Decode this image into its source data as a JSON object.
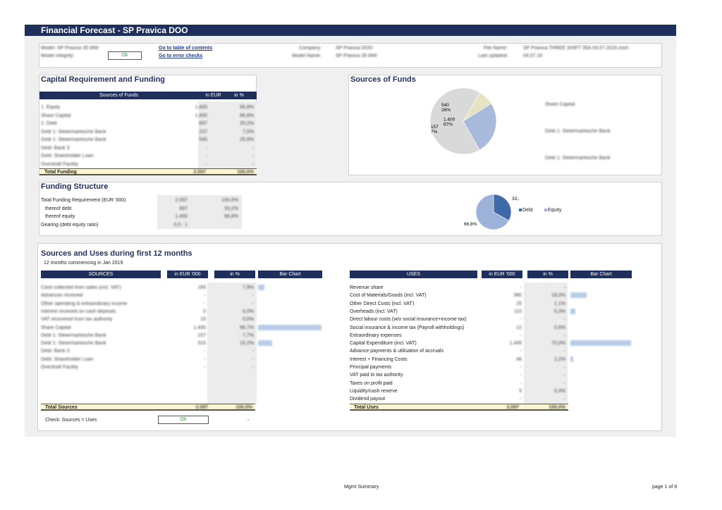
{
  "title": "Financial Forecast - SP Pravica DOO",
  "info": {
    "model_label": "Model: SP Pravica 35 MW",
    "integrity_label": "Model integrity:",
    "integrity_value": "Ok",
    "link_toc": "Go to table of contents",
    "link_errors": "Go to error checks",
    "company_label": "Company:",
    "company_value": "SP Pravica DOO",
    "model_name_label": "Model Name:",
    "model_name_value": "SP Pravica 35 MW",
    "filename_label": "File Name:",
    "filename_value": "SP Pravica THREE SHIFT 35A 04.07.2016.xlsm",
    "updated_label": "Last updated:",
    "updated_value": "04.07.16"
  },
  "capital": {
    "title": "Capital Requirement and Funding",
    "headers": [
      "Sources of Funds",
      "in EUR '000",
      "in %"
    ],
    "rows": [
      {
        "label": "1. Equity",
        "eur": "1.400",
        "pct": "66,8%"
      },
      {
        "label": "Share Capital",
        "eur": "1.400",
        "pct": "66,8%"
      },
      {
        "label": "2. Debt",
        "eur": "697",
        "pct": "33,2%"
      },
      {
        "label": "Debt 1: Steiermarkische Bank",
        "eur": "157",
        "pct": "7,5%"
      },
      {
        "label": "Debt 1: Steiermarkische Bank",
        "eur": "540",
        "pct": "25,8%"
      },
      {
        "label": "Debt: Bank 3",
        "eur": "-",
        "pct": "-"
      },
      {
        "label": "Debt: Shareholder Loan",
        "eur": "-",
        "pct": "-"
      },
      {
        "label": "Overdraft Facility",
        "eur": "-",
        "pct": "-"
      }
    ],
    "total_label": "Total Funding",
    "total_eur": "2.097",
    "total_pct": "100,0%"
  },
  "sources_of_funds": {
    "title": "Sources of Funds",
    "legend": [
      "Share Capital",
      "Debt 1: Steiermarkische Bank",
      "Debt 1: Steiermarkische Bank"
    ]
  },
  "funding_structure": {
    "title": "Funding Structure",
    "rows": [
      {
        "label": "Total Funding Requirement (EUR '000)",
        "a": "2.097",
        "b": "100,0%"
      },
      {
        "label": "thereof debt",
        "a": "697",
        "b": "33,2%"
      },
      {
        "label": "thereof equity",
        "a": "1.400",
        "b": "66,8%"
      },
      {
        "label": "Gearing (debt equity ratio)",
        "a": "0,5 : 1",
        "b": ""
      }
    ],
    "legend_debt": "Debt",
    "legend_equity": "Equity"
  },
  "chart_data": [
    {
      "type": "pie",
      "categories": [
        "Share Capital",
        "Debt 1: Steiermarkische Bank",
        "Debt 1: Steiermarkische Bank"
      ],
      "values": [
        1400,
        157,
        540
      ],
      "data_labels": [
        {
          "value": "1.400",
          "pct": "67%"
        },
        {
          "value": "157",
          "pct": "7%"
        },
        {
          "value": "540",
          "pct": "26%"
        }
      ],
      "colors": [
        "#d9d9d9",
        "#e6e2c2",
        "#a9bbdc"
      ]
    },
    {
      "type": "pie",
      "categories": [
        "Debt",
        "Equity"
      ],
      "values": [
        33.2,
        66.8
      ],
      "data_labels": [
        "33,2%",
        "66,8%"
      ],
      "colors": [
        "#3f6aa8",
        "#9cb2d8"
      ]
    }
  ],
  "sources_uses": {
    "title": "Sources and Uses during first 12 months",
    "subtitle": "12 months commencing in Jan 2019",
    "sources_headers": [
      "SOURCES",
      "in EUR '000",
      "in %",
      "Bar Chart"
    ],
    "uses_headers": [
      "USES",
      "in EUR '000",
      "in %",
      "Bar Chart"
    ],
    "sources": [
      {
        "label": "Cash collected from sales (incl. VAT)",
        "eur": "165",
        "pct": "7,9%",
        "bar": 0.08
      },
      {
        "label": "Advances received",
        "eur": "-",
        "pct": "-",
        "bar": 0
      },
      {
        "label": "Other operating & extraordinary income",
        "eur": "-",
        "pct": "-",
        "bar": 0
      },
      {
        "label": "Interest received on cash deposits",
        "eur": "0",
        "pct": "0,0%",
        "bar": 0
      },
      {
        "label": "VAT recovered from tax authority",
        "eur": "15",
        "pct": "0,0%",
        "bar": 0
      },
      {
        "label": "Share Capital",
        "eur": "1.400",
        "pct": "66,7%",
        "bar": 1.0
      },
      {
        "label": "Debt 1: Steiermarkische Bank",
        "eur": "157",
        "pct": "7,7%",
        "bar": 0
      },
      {
        "label": "Debt 1: Steiermarkische Bank",
        "eur": "315",
        "pct": "15,2%",
        "bar": 0.22
      },
      {
        "label": "Debt: Bank 3",
        "eur": "-",
        "pct": "-",
        "bar": 0
      },
      {
        "label": "Debt: Shareholder Loan",
        "eur": "-",
        "pct": "-",
        "bar": 0
      },
      {
        "label": "Overdraft Facility",
        "eur": "-",
        "pct": "-",
        "bar": 0
      }
    ],
    "uses": [
      {
        "label": "Revenue share",
        "eur": "-",
        "pct": "-",
        "bar": 0
      },
      {
        "label": "Cost of Materials/Goods (incl. VAT)",
        "eur": "380",
        "pct": "18,0%",
        "bar": 0.27
      },
      {
        "label": "Other Direct Costs (incl. VAT)",
        "eur": "25",
        "pct": "1,1%",
        "bar": 0
      },
      {
        "label": "Overheads (incl. VAT)",
        "eur": "110",
        "pct": "5,3%",
        "bar": 0.08
      },
      {
        "label": "Direct labour costs (w/o social insurance+income tax)",
        "eur": "-",
        "pct": "-",
        "bar": 0
      },
      {
        "label": "Social insurance & income tax (Payroll withholdings)",
        "eur": "12",
        "pct": "0,6%",
        "bar": 0
      },
      {
        "label": "Extraordinary expenses",
        "eur": "-",
        "pct": "-",
        "bar": 0
      },
      {
        "label": "Capital Expenditure (incl. VAT)",
        "eur": "1.445",
        "pct": "70,0%",
        "bar": 1.0
      },
      {
        "label": "Advance payments & utilisation of accruals",
        "eur": "-",
        "pct": "-",
        "bar": 0
      },
      {
        "label": "Interest + Financing Costs",
        "eur": "46",
        "pct": "2,2%",
        "bar": 0.04
      },
      {
        "label": "Principal payments",
        "eur": "-",
        "pct": "-",
        "bar": 0
      },
      {
        "label": "VAT paid to tax authority",
        "eur": "-",
        "pct": "-",
        "bar": 0
      },
      {
        "label": "Taxes on profit paid",
        "eur": "-",
        "pct": "-",
        "bar": 0
      },
      {
        "label": "Liquidity/cash reserve",
        "eur": "9",
        "pct": "0,4%",
        "bar": 0
      },
      {
        "label": "Dividend payout",
        "eur": "-",
        "pct": "-",
        "bar": 0
      }
    ],
    "total_sources_label": "Total Sources",
    "total_sources_eur": "2.097",
    "total_sources_pct": "100,0%",
    "total_uses_label": "Total Uses",
    "total_uses_eur": "2.097",
    "total_uses_pct": "100,0%",
    "check_label": "Check: Sources = Uses",
    "check_value": "Ok",
    "check_dash": "-"
  },
  "footer": {
    "center": "Mgmt Summary",
    "right": "page 1 of 9"
  }
}
